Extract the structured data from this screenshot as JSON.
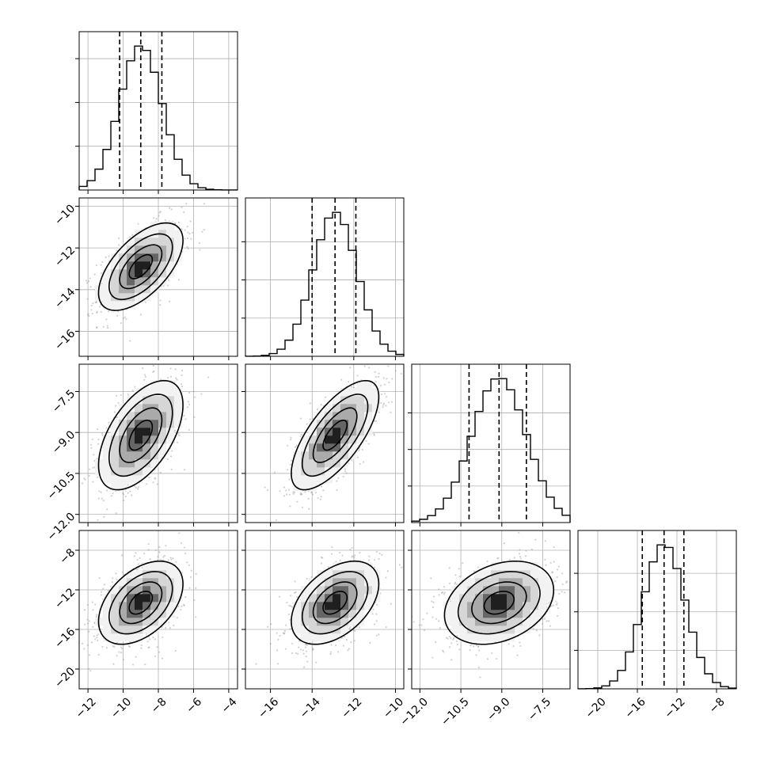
{
  "chart_data": {
    "type": "corner",
    "title": "",
    "grid": true,
    "parameters": [
      {
        "median": -9.0,
        "q16": -10.2,
        "q84": -7.8,
        "sigma": 1.2,
        "range": [
          -12.5,
          -3.5
        ],
        "ticks": [
          -12,
          -10,
          -8,
          -6,
          -4
        ],
        "tick_labels": [
          "−12",
          "−10",
          "−8",
          "−6",
          "−4"
        ]
      },
      {
        "median": -12.9,
        "q16": -14.0,
        "q84": -11.9,
        "sigma": 1.05,
        "range": [
          -17.2,
          -9.6
        ],
        "ticks": [
          -16,
          -14,
          -12,
          -10
        ],
        "tick_labels": [
          "−16",
          "−14",
          "−12",
          "−10"
        ]
      },
      {
        "median": -9.1,
        "q16": -10.2,
        "q84": -8.1,
        "sigma": 1.0,
        "range": [
          -12.3,
          -6.5
        ],
        "ticks": [
          -12.0,
          -10.5,
          -9.0,
          -7.5
        ],
        "tick_labels": [
          "−12.0",
          "−10.5",
          "−9.0",
          "−7.5"
        ]
      },
      {
        "median": -13.3,
        "q16": -15.5,
        "q84": -11.3,
        "sigma": 2.1,
        "range": [
          -22.0,
          -6.0
        ],
        "ticks": [
          -20,
          -16,
          -12,
          -8
        ],
        "tick_labels": [
          "−20",
          "−16",
          "−12",
          "−8"
        ]
      }
    ],
    "correlations": {
      "1,0": 0.6,
      "2,0": 0.55,
      "2,1": 0.7,
      "3,0": 0.45,
      "3,1": 0.45,
      "3,2": 0.3
    },
    "diagonal_ticks": [
      {
        "ticks": [
          0.1,
          0.2,
          0.3
        ]
      },
      {
        "ticks": [
          0.1,
          0.2,
          0.3
        ]
      },
      {
        "ticks": [
          0.1,
          0.2,
          0.3
        ]
      },
      {
        "ticks": [
          0.05,
          0.1,
          0.15
        ]
      }
    ],
    "contour_levels_sigma": [
      0.5,
      1.0,
      1.5,
      2.0
    ],
    "quantiles": [
      0.16,
      0.5,
      0.84
    ]
  }
}
